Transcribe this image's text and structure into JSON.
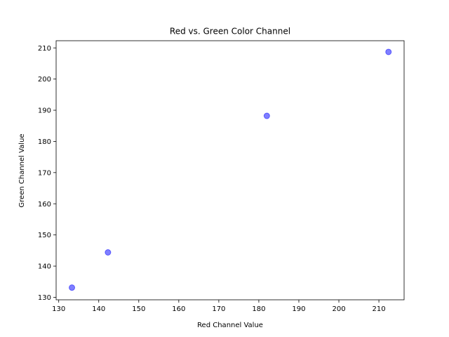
{
  "chart_data": {
    "type": "scatter",
    "title": "Red vs. Green Color Channel",
    "xlabel": "Red Channel Value",
    "ylabel": "Green Channel Value",
    "xlim": [
      129.35,
      216.3
    ],
    "ylim": [
      129.2,
      212.3
    ],
    "xticks": [
      130,
      140,
      150,
      160,
      170,
      180,
      190,
      200,
      210
    ],
    "yticks": [
      130,
      140,
      150,
      160,
      170,
      180,
      190,
      200,
      210
    ],
    "grid": false,
    "point_color": "#0000ff",
    "point_alpha": 0.5,
    "series": [
      {
        "x": [
          133.3,
          142.3,
          182.0,
          212.4
        ],
        "y": [
          133.1,
          144.4,
          188.2,
          208.7
        ]
      }
    ]
  }
}
